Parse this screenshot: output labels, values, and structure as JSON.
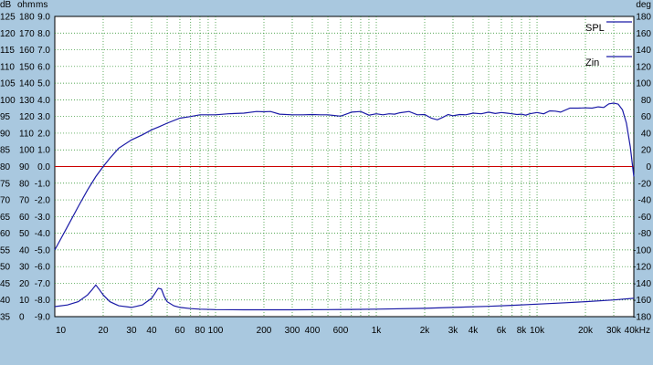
{
  "chart_data": {
    "type": "line",
    "x_scale": "log",
    "xlim": [
      10,
      40000
    ],
    "grid": true,
    "legend_position": "top-right",
    "x_tick_labels": [
      {
        "v": 10,
        "t": "10"
      },
      {
        "v": 20,
        "t": "20"
      },
      {
        "v": 30,
        "t": "30"
      },
      {
        "v": 40,
        "t": "40"
      },
      {
        "v": 60,
        "t": "60"
      },
      {
        "v": 80,
        "t": "80"
      },
      {
        "v": 100,
        "t": "100"
      },
      {
        "v": 200,
        "t": "200"
      },
      {
        "v": 300,
        "t": "300"
      },
      {
        "v": 400,
        "t": "400"
      },
      {
        "v": 600,
        "t": "600"
      },
      {
        "v": 1000,
        "t": "1k"
      },
      {
        "v": 2000,
        "t": "2k"
      },
      {
        "v": 3000,
        "t": "3k"
      },
      {
        "v": 4000,
        "t": "4k"
      },
      {
        "v": 6000,
        "t": "6k"
      },
      {
        "v": 8000,
        "t": "8k"
      },
      {
        "v": 10000,
        "t": "10k"
      },
      {
        "v": 20000,
        "t": "20k"
      },
      {
        "v": 30000,
        "t": "30k"
      },
      {
        "v": 40000,
        "t": "40kHz"
      }
    ],
    "y_left_labels": {
      "db_header": "dB",
      "db": [
        "125",
        "120",
        "115",
        "110",
        "105",
        "100",
        "95",
        "90",
        "85",
        "80",
        "75",
        "70",
        "65",
        "60",
        "55",
        "50",
        "45",
        "40",
        "35"
      ],
      "ohm_header": "ohm",
      "ohm": [
        "180",
        "170",
        "160",
        "150",
        "140",
        "130",
        "120",
        "110",
        "100",
        "90",
        "80",
        "70",
        "60",
        "50",
        "40",
        "30",
        "20",
        "10",
        "0"
      ],
      "ms_header": "ms",
      "ms": [
        "9.0",
        "8.0",
        "7.0",
        "6.0",
        "5.0",
        "4.0",
        "3.0",
        "2.0",
        "1.0",
        "0.0",
        "-1.0",
        "-2.0",
        "-3.0",
        "-4.0",
        "-5.0",
        "-6.0",
        "-7.0",
        "-8.0",
        "-9.0"
      ]
    },
    "ylim_db": [
      35,
      125
    ],
    "y_right_labels": {
      "header": "deg",
      "values": [
        "180",
        "160",
        "140",
        "120",
        "100",
        "80",
        "60",
        "40",
        "20",
        "0",
        "-20",
        "-40",
        "-60",
        "-80",
        "-100",
        "-120",
        "-140",
        "-160",
        "-180"
      ]
    },
    "series": [
      {
        "name": "SPL",
        "color": "#1a1aa6",
        "axis": "dB",
        "x": [
          10,
          12,
          14,
          16,
          18,
          20,
          22,
          25,
          30,
          35,
          40,
          45,
          50,
          60,
          70,
          80,
          100,
          120,
          150,
          180,
          200,
          220,
          250,
          300,
          350,
          400,
          450,
          500,
          550,
          600,
          650,
          700,
          800,
          900,
          1000,
          1100,
          1200,
          1300,
          1400,
          1600,
          1800,
          2000,
          2200,
          2400,
          2600,
          2800,
          3000,
          3300,
          3600,
          4000,
          4500,
          5000,
          5500,
          6000,
          6500,
          7000,
          7500,
          8000,
          8500,
          9000,
          10000,
          11000,
          12000,
          13000,
          14000,
          16000,
          18000,
          20000,
          22000,
          24000,
          26000,
          28000,
          30000,
          32000,
          34000,
          36000,
          38000,
          40000
        ],
        "y": [
          55,
          62,
          68,
          73,
          77,
          80,
          82.5,
          85.5,
          88,
          89.5,
          91,
          92,
          93,
          94.5,
          95,
          95.5,
          95.5,
          95.8,
          96,
          96.5,
          96.4,
          96.5,
          95.7,
          95.5,
          95.5,
          95.6,
          95.5,
          95.5,
          95.3,
          95.1,
          95.7,
          96.3,
          96.5,
          95.4,
          95.8,
          95.5,
          95.8,
          95.7,
          96.1,
          96.5,
          95.5,
          95.6,
          94.5,
          94,
          94.8,
          95.6,
          95.2,
          95.6,
          95.5,
          96,
          95.8,
          96.3,
          95.9,
          96.2,
          96,
          95.8,
          95.6,
          95.7,
          95.4,
          95.8,
          96.2,
          95.8,
          96.7,
          96.6,
          96.3,
          97.5,
          97.5,
          97.6,
          97.5,
          97.9,
          97.7,
          98.8,
          99,
          98.7,
          97,
          93,
          86,
          77
        ]
      },
      {
        "name": "Zin",
        "color": "#1a1aa6",
        "axis": "ohm",
        "x": [
          10,
          12,
          14,
          16,
          17,
          18,
          19,
          20,
          22,
          25,
          30,
          35,
          40,
          42,
          44,
          46,
          48,
          50,
          55,
          60,
          70,
          80,
          100,
          150,
          200,
          300,
          500,
          700,
          1000,
          2000,
          3000,
          5000,
          7000,
          10000,
          15000,
          20000,
          30000,
          40000
        ],
        "y": [
          6,
          7,
          9,
          13,
          16,
          19,
          16,
          13,
          9,
          6.5,
          5.5,
          7,
          11,
          14,
          17,
          16.5,
          12,
          9,
          6.5,
          5.5,
          4.8,
          4.5,
          4.2,
          4.1,
          4.1,
          4.1,
          4.2,
          4.3,
          4.5,
          5,
          5.5,
          6.2,
          6.8,
          7.5,
          8.3,
          9,
          10,
          11
        ]
      }
    ],
    "reference_line": {
      "y_db": 80,
      "color": "#cc0000"
    }
  }
}
